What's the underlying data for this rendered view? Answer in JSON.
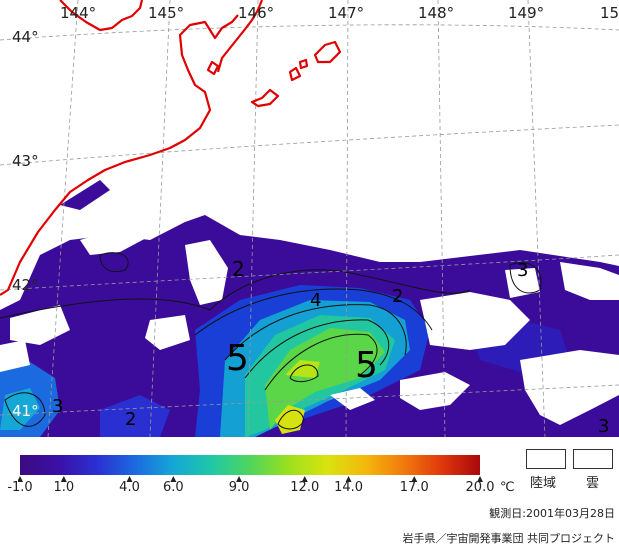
{
  "map": {
    "lon_labels": [
      "144°",
      "145°",
      "146°",
      "147°",
      "148°",
      "149°",
      "15"
    ],
    "lat_labels": [
      "44°",
      "43°",
      "42°",
      "41°"
    ],
    "contour_labels": [
      "2",
      "2",
      "2",
      "3",
      "3",
      "3",
      "4",
      "5",
      "5"
    ]
  },
  "colorbar": {
    "ticks": [
      "-1.0",
      "1.0",
      "4.0",
      "6.0",
      "9.0",
      "12.0",
      "14.0",
      "17.0",
      "20.0"
    ],
    "unit": "℃",
    "colors": [
      "#3d0a82",
      "#3a10a8",
      "#2a2fd1",
      "#1b6ae0",
      "#15a7d6",
      "#1fc8a6",
      "#4ed55c",
      "#9be01e",
      "#d9e30e",
      "#f3b90c",
      "#f17a0d",
      "#e0380c",
      "#a8080c"
    ]
  },
  "legend": {
    "land_label": "陸域",
    "cloud_label": "雲"
  },
  "footer": {
    "observation_date": "観測日:2001年03月28日",
    "credit": "岩手県／宇宙開発事業団 共同プロジェクト"
  }
}
